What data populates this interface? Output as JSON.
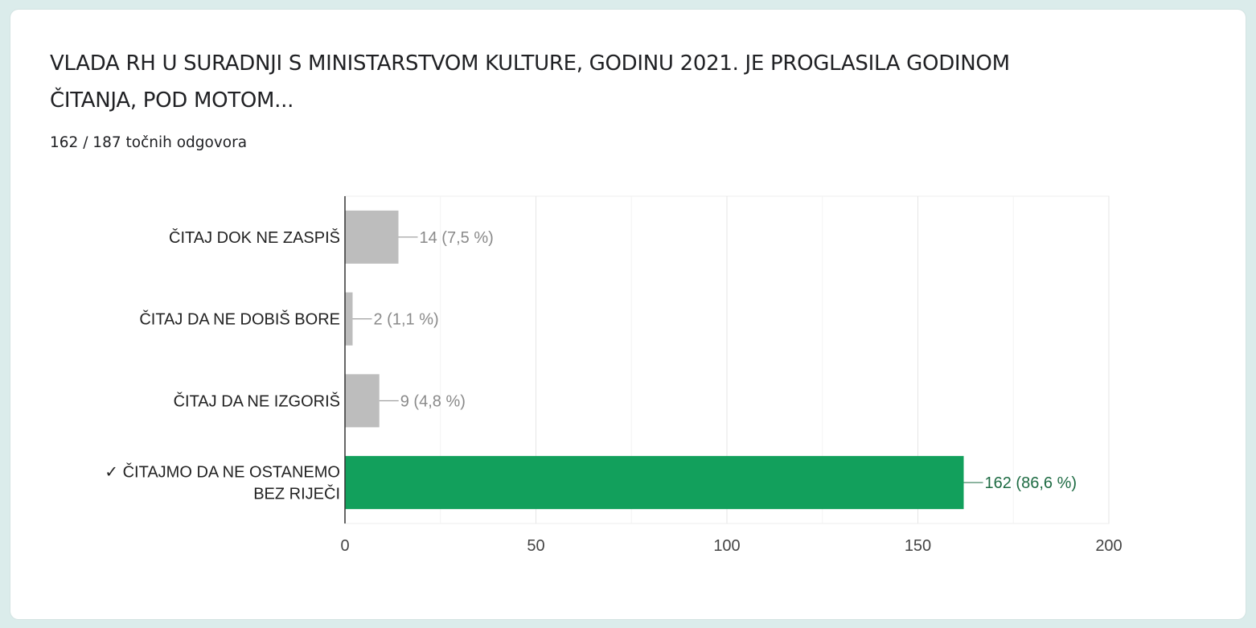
{
  "question": {
    "title": "VLADA RH U SURADNJI S MINISTARSTVOM KULTURE, GODINU 2021. JE PROGLASILA GODINOM ČITANJA, POD MOTOM...",
    "summary": "162 / 187 točnih odgovora"
  },
  "colors": {
    "correct": "#12a05c",
    "incorrect": "#bdbdbd",
    "correct_label": "#1e6b43",
    "incorrect_label": "#8a8a8a"
  },
  "chart_data": {
    "type": "bar",
    "orientation": "horizontal",
    "categories": [
      "ČITAJ DOK NE ZASPIŠ",
      "ČITAJ DA NE DOBIŠ BORE",
      "ČITAJ DA NE IZGORIŠ",
      "✓ ČITAJMO DA NE OSTANEMO BEZ RIJEČI"
    ],
    "category_lines": [
      [
        "ČITAJ DOK NE ZASPIŠ"
      ],
      [
        "ČITAJ DA NE DOBIŠ BORE"
      ],
      [
        "ČITAJ DA NE IZGORIŠ"
      ],
      [
        "✓ ČITAJMO DA NE OSTANEMO",
        "BEZ RIJEČI"
      ]
    ],
    "values": [
      14,
      2,
      9,
      162
    ],
    "data_labels": [
      "14 (7,5 %)",
      "2 (1,1 %)",
      "9 (4,8 %)",
      "162 (86,6 %)"
    ],
    "correct": [
      false,
      false,
      false,
      true
    ],
    "xlim": [
      0,
      200
    ],
    "xticks": [
      0,
      50,
      100,
      150,
      200
    ],
    "xtick_labels": [
      "0",
      "50",
      "100",
      "150",
      "200"
    ],
    "grid": true,
    "legend": "none"
  }
}
